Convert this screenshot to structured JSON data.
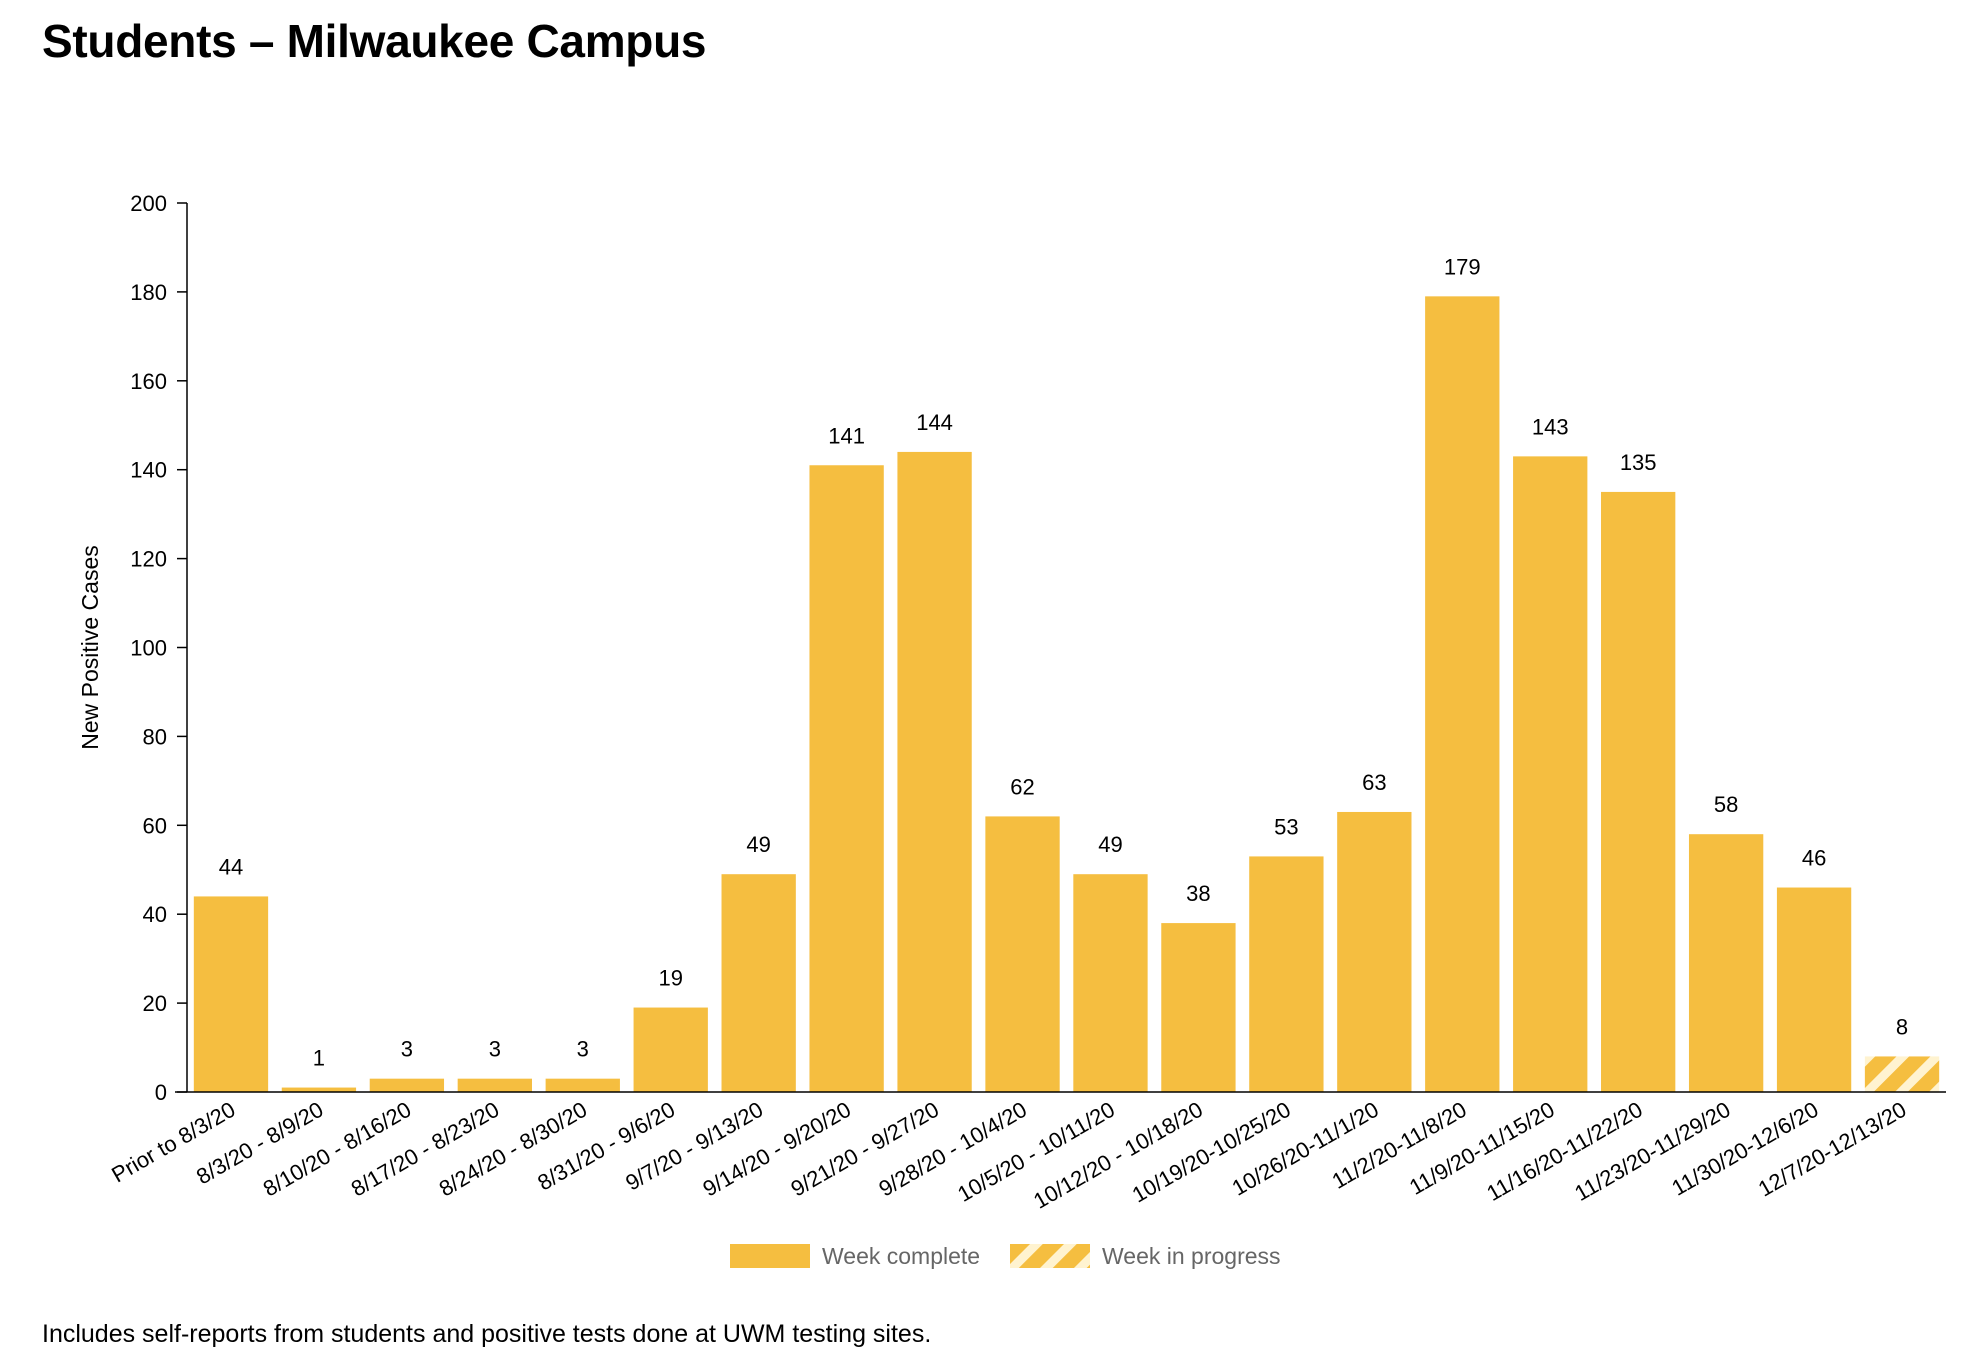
{
  "title": "Students – Milwaukee Campus",
  "footnote": "Includes self-reports from students and positive tests done at UWM testing sites.",
  "colors": {
    "bar": "#F5BE40",
    "stripe": "#FFF3D0",
    "axis": "#000000",
    "legend_text": "#666666"
  },
  "chart_data": {
    "type": "bar",
    "ylabel": "New Positive Cases",
    "xlabel": "",
    "ylim": [
      0,
      200
    ],
    "yticks": [
      0,
      20,
      40,
      60,
      80,
      100,
      120,
      140,
      160,
      180,
      200
    ],
    "grid": false,
    "legend_position": "bottom",
    "categories": [
      "Prior to 8/3/20",
      "8/3/20 - 8/9/20",
      "8/10/20 - 8/16/20",
      "8/17/20 - 8/23/20",
      "8/24/20 - 8/30/20",
      "8/31/20 - 9/6/20",
      "9/7/20 - 9/13/20",
      "9/14/20 - 9/20/20",
      "9/21/20 - 9/27/20",
      "9/28/20 - 10/4/20",
      "10/5/20 - 10/11/20",
      "10/12/20 - 10/18/20",
      "10/19/20-10/25/20",
      "10/26/20-11/1/20",
      "11/2/20-11/8/20",
      "11/9/20-11/15/20",
      "11/16/20-11/22/20",
      "11/23/20-11/29/20",
      "11/30/20-12/6/20",
      "12/7/20-12/13/20"
    ],
    "values": [
      44,
      1,
      3,
      3,
      3,
      19,
      49,
      141,
      144,
      62,
      49,
      38,
      53,
      63,
      179,
      143,
      135,
      58,
      46,
      8
    ],
    "status": [
      "complete",
      "complete",
      "complete",
      "complete",
      "complete",
      "complete",
      "complete",
      "complete",
      "complete",
      "complete",
      "complete",
      "complete",
      "complete",
      "complete",
      "complete",
      "complete",
      "complete",
      "complete",
      "complete",
      "in_progress"
    ],
    "legend": [
      {
        "key": "complete",
        "label": "Week complete"
      },
      {
        "key": "in_progress",
        "label": "Week in progress"
      }
    ]
  }
}
